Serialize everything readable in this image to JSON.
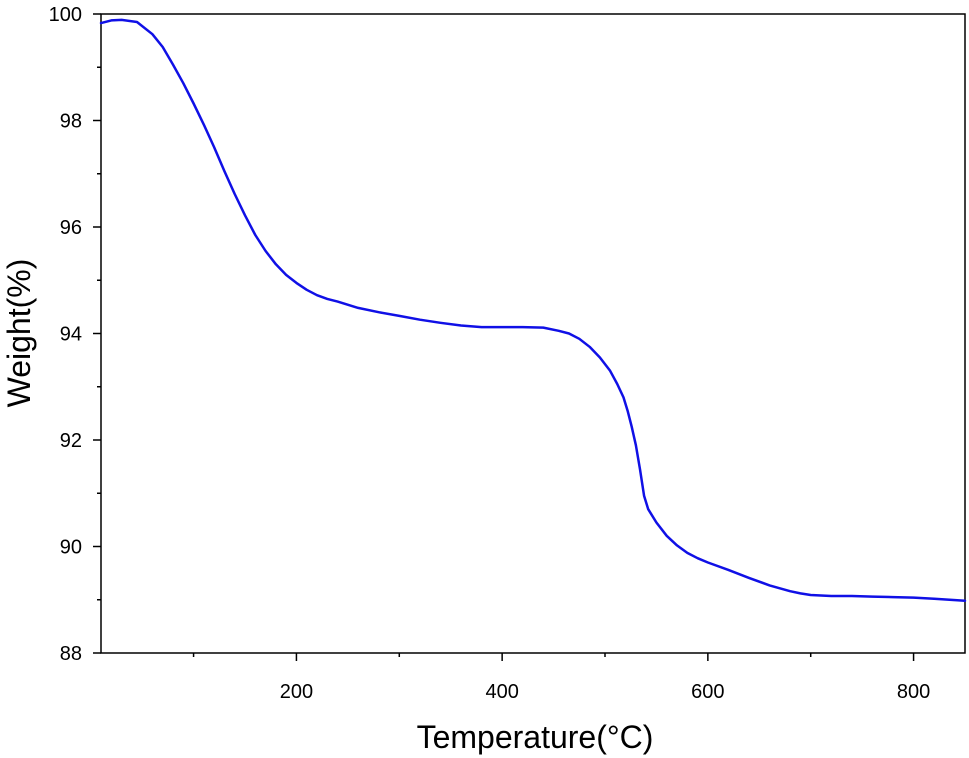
{
  "chart_data": {
    "type": "line",
    "title": "",
    "xlabel": "Temperature(°C)",
    "ylabel": "Weight(%)",
    "xlim": [
      10,
      850
    ],
    "ylim": [
      88,
      100
    ],
    "x_ticks": [
      200,
      400,
      600,
      800
    ],
    "x_tick_labels": [
      "200",
      "400",
      "600",
      "800"
    ],
    "x_minor_ticks": [
      100,
      300,
      500,
      700
    ],
    "y_ticks": [
      88,
      90,
      92,
      94,
      96,
      98,
      100
    ],
    "y_tick_labels": [
      "88",
      "90",
      "92",
      "94",
      "96",
      "98",
      "100"
    ],
    "y_minor_ticks": [
      89,
      91,
      93,
      95,
      97,
      99
    ],
    "grid": false,
    "legend": "none",
    "series": [
      {
        "color": "#1010e6",
        "x": [
          10,
          20,
          30,
          45,
          60,
          70,
          80,
          90,
          100,
          110,
          120,
          130,
          140,
          150,
          160,
          170,
          180,
          190,
          200,
          210,
          220,
          230,
          240,
          260,
          280,
          300,
          320,
          340,
          360,
          380,
          400,
          420,
          440,
          455,
          465,
          475,
          485,
          495,
          505,
          512,
          518,
          522,
          526,
          530,
          534,
          538,
          542,
          550,
          560,
          570,
          580,
          590,
          600,
          620,
          640,
          660,
          680,
          690,
          700,
          720,
          740,
          760,
          780,
          800,
          820,
          850
        ],
        "y": [
          99.83,
          99.88,
          99.89,
          99.85,
          99.62,
          99.38,
          99.05,
          98.7,
          98.32,
          97.92,
          97.5,
          97.05,
          96.62,
          96.22,
          95.85,
          95.55,
          95.3,
          95.1,
          94.95,
          94.82,
          94.72,
          94.65,
          94.6,
          94.48,
          94.4,
          94.33,
          94.26,
          94.2,
          94.15,
          94.12,
          94.12,
          94.12,
          94.11,
          94.05,
          94.0,
          93.9,
          93.75,
          93.55,
          93.3,
          93.05,
          92.8,
          92.55,
          92.25,
          91.9,
          91.45,
          90.95,
          90.7,
          90.45,
          90.2,
          90.02,
          89.88,
          89.78,
          89.7,
          89.56,
          89.41,
          89.27,
          89.16,
          89.12,
          89.09,
          89.07,
          89.07,
          89.06,
          89.05,
          89.04,
          89.02,
          88.98
        ]
      }
    ]
  }
}
